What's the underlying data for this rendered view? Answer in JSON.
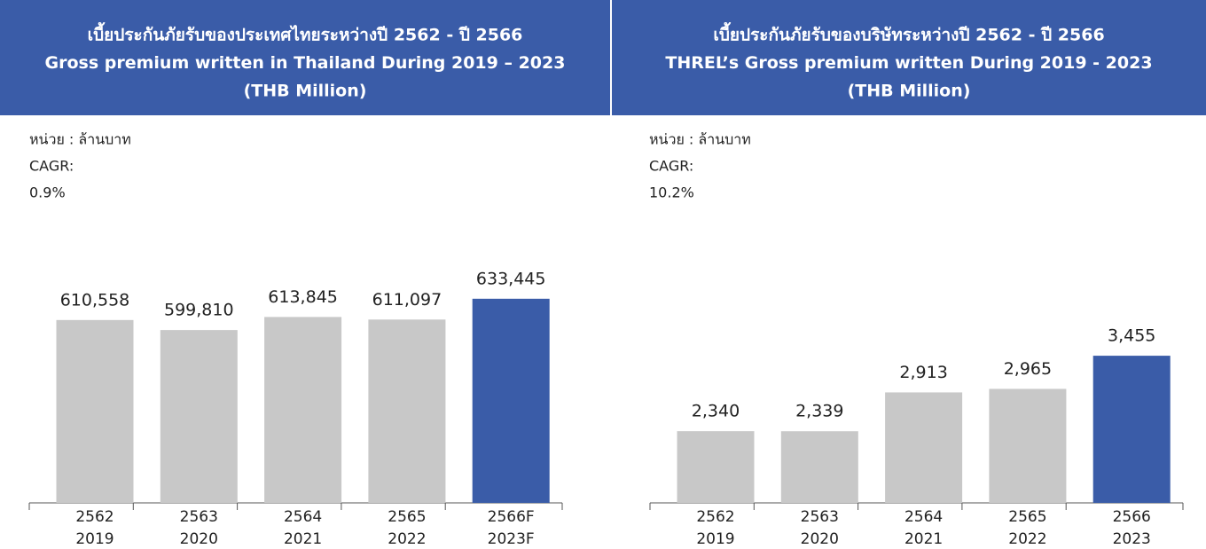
{
  "chart_data": [
    {
      "type": "bar",
      "title": [
        "เบี้ยประกันภัยรับของประเทศไทยระหว่างปี 2562 - ปี 2566",
        "Gross premium written in Thailand During 2019 – 2023",
        "(THB Million)"
      ],
      "unit_label": "หน่วย : ล้านบาท",
      "cagr_label": "CAGR:",
      "cagr": "0.9%",
      "categories": [
        [
          "2562",
          "2019"
        ],
        [
          "2563",
          "2020"
        ],
        [
          "2564",
          "2021"
        ],
        [
          "2565",
          "2022"
        ],
        [
          "2566F",
          "2023F"
        ]
      ],
      "values": [
        610558,
        599810,
        613845,
        611097,
        633445
      ],
      "value_labels": [
        "610,558",
        "599,810",
        "613,845",
        "611,097",
        "633,445"
      ],
      "colors": [
        "#c8c8c8",
        "#c8c8c8",
        "#c8c8c8",
        "#c8c8c8",
        "#3a5ca8"
      ],
      "ylim": [
        414000,
        670000
      ]
    },
    {
      "type": "bar",
      "title": [
        "เบี้ยประกันภัยรับของบริษัทระหว่างปี 2562 - ปี 2566",
        "THREL’s Gross premium written During 2019 - 2023",
        "(THB Million)"
      ],
      "unit_label": "หน่วย : ล้านบาท",
      "cagr_label": "CAGR:",
      "cagr": "10.2%",
      "categories": [
        [
          "2562",
          "2019"
        ],
        [
          "2563",
          "2020"
        ],
        [
          "2564",
          "2021"
        ],
        [
          "2565",
          "2022"
        ],
        [
          "2566",
          "2023"
        ]
      ],
      "values": [
        2340,
        2339,
        2913,
        2965,
        3455
      ],
      "value_labels": [
        "2,340",
        "2,339",
        "2,913",
        "2,965",
        "3,455"
      ],
      "colors": [
        "#c8c8c8",
        "#c8c8c8",
        "#c8c8c8",
        "#c8c8c8",
        "#3a5ca8"
      ],
      "ylim": [
        1280,
        4800
      ]
    }
  ]
}
